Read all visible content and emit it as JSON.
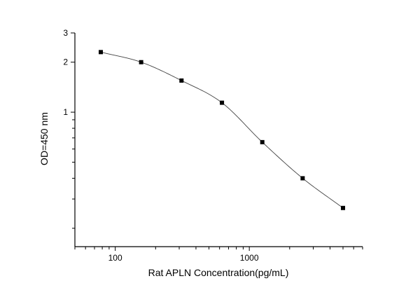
{
  "chart_data": {
    "type": "scatter",
    "title": "",
    "xlabel": "Rat APLN  Concentration(pg/mL)",
    "ylabel": "OD=450 nm",
    "x_scale": "log",
    "y_scale": "log",
    "xlim": [
      50,
      7000
    ],
    "ylim": [
      0.155,
      3
    ],
    "x_ticks": [
      100,
      1000
    ],
    "y_ticks": [
      1,
      2,
      3
    ],
    "grid": false,
    "legend": "none",
    "series": [
      {
        "x": [
          78,
          156,
          312,
          625,
          1250,
          2500,
          5000
        ],
        "y": [
          2.3,
          2.0,
          1.55,
          1.14,
          0.66,
          0.4,
          0.265
        ],
        "marker": "square",
        "fit_line": true
      }
    ],
    "colors": {
      "marker": "#000000",
      "line": "#444444",
      "axis": "#000000"
    }
  }
}
